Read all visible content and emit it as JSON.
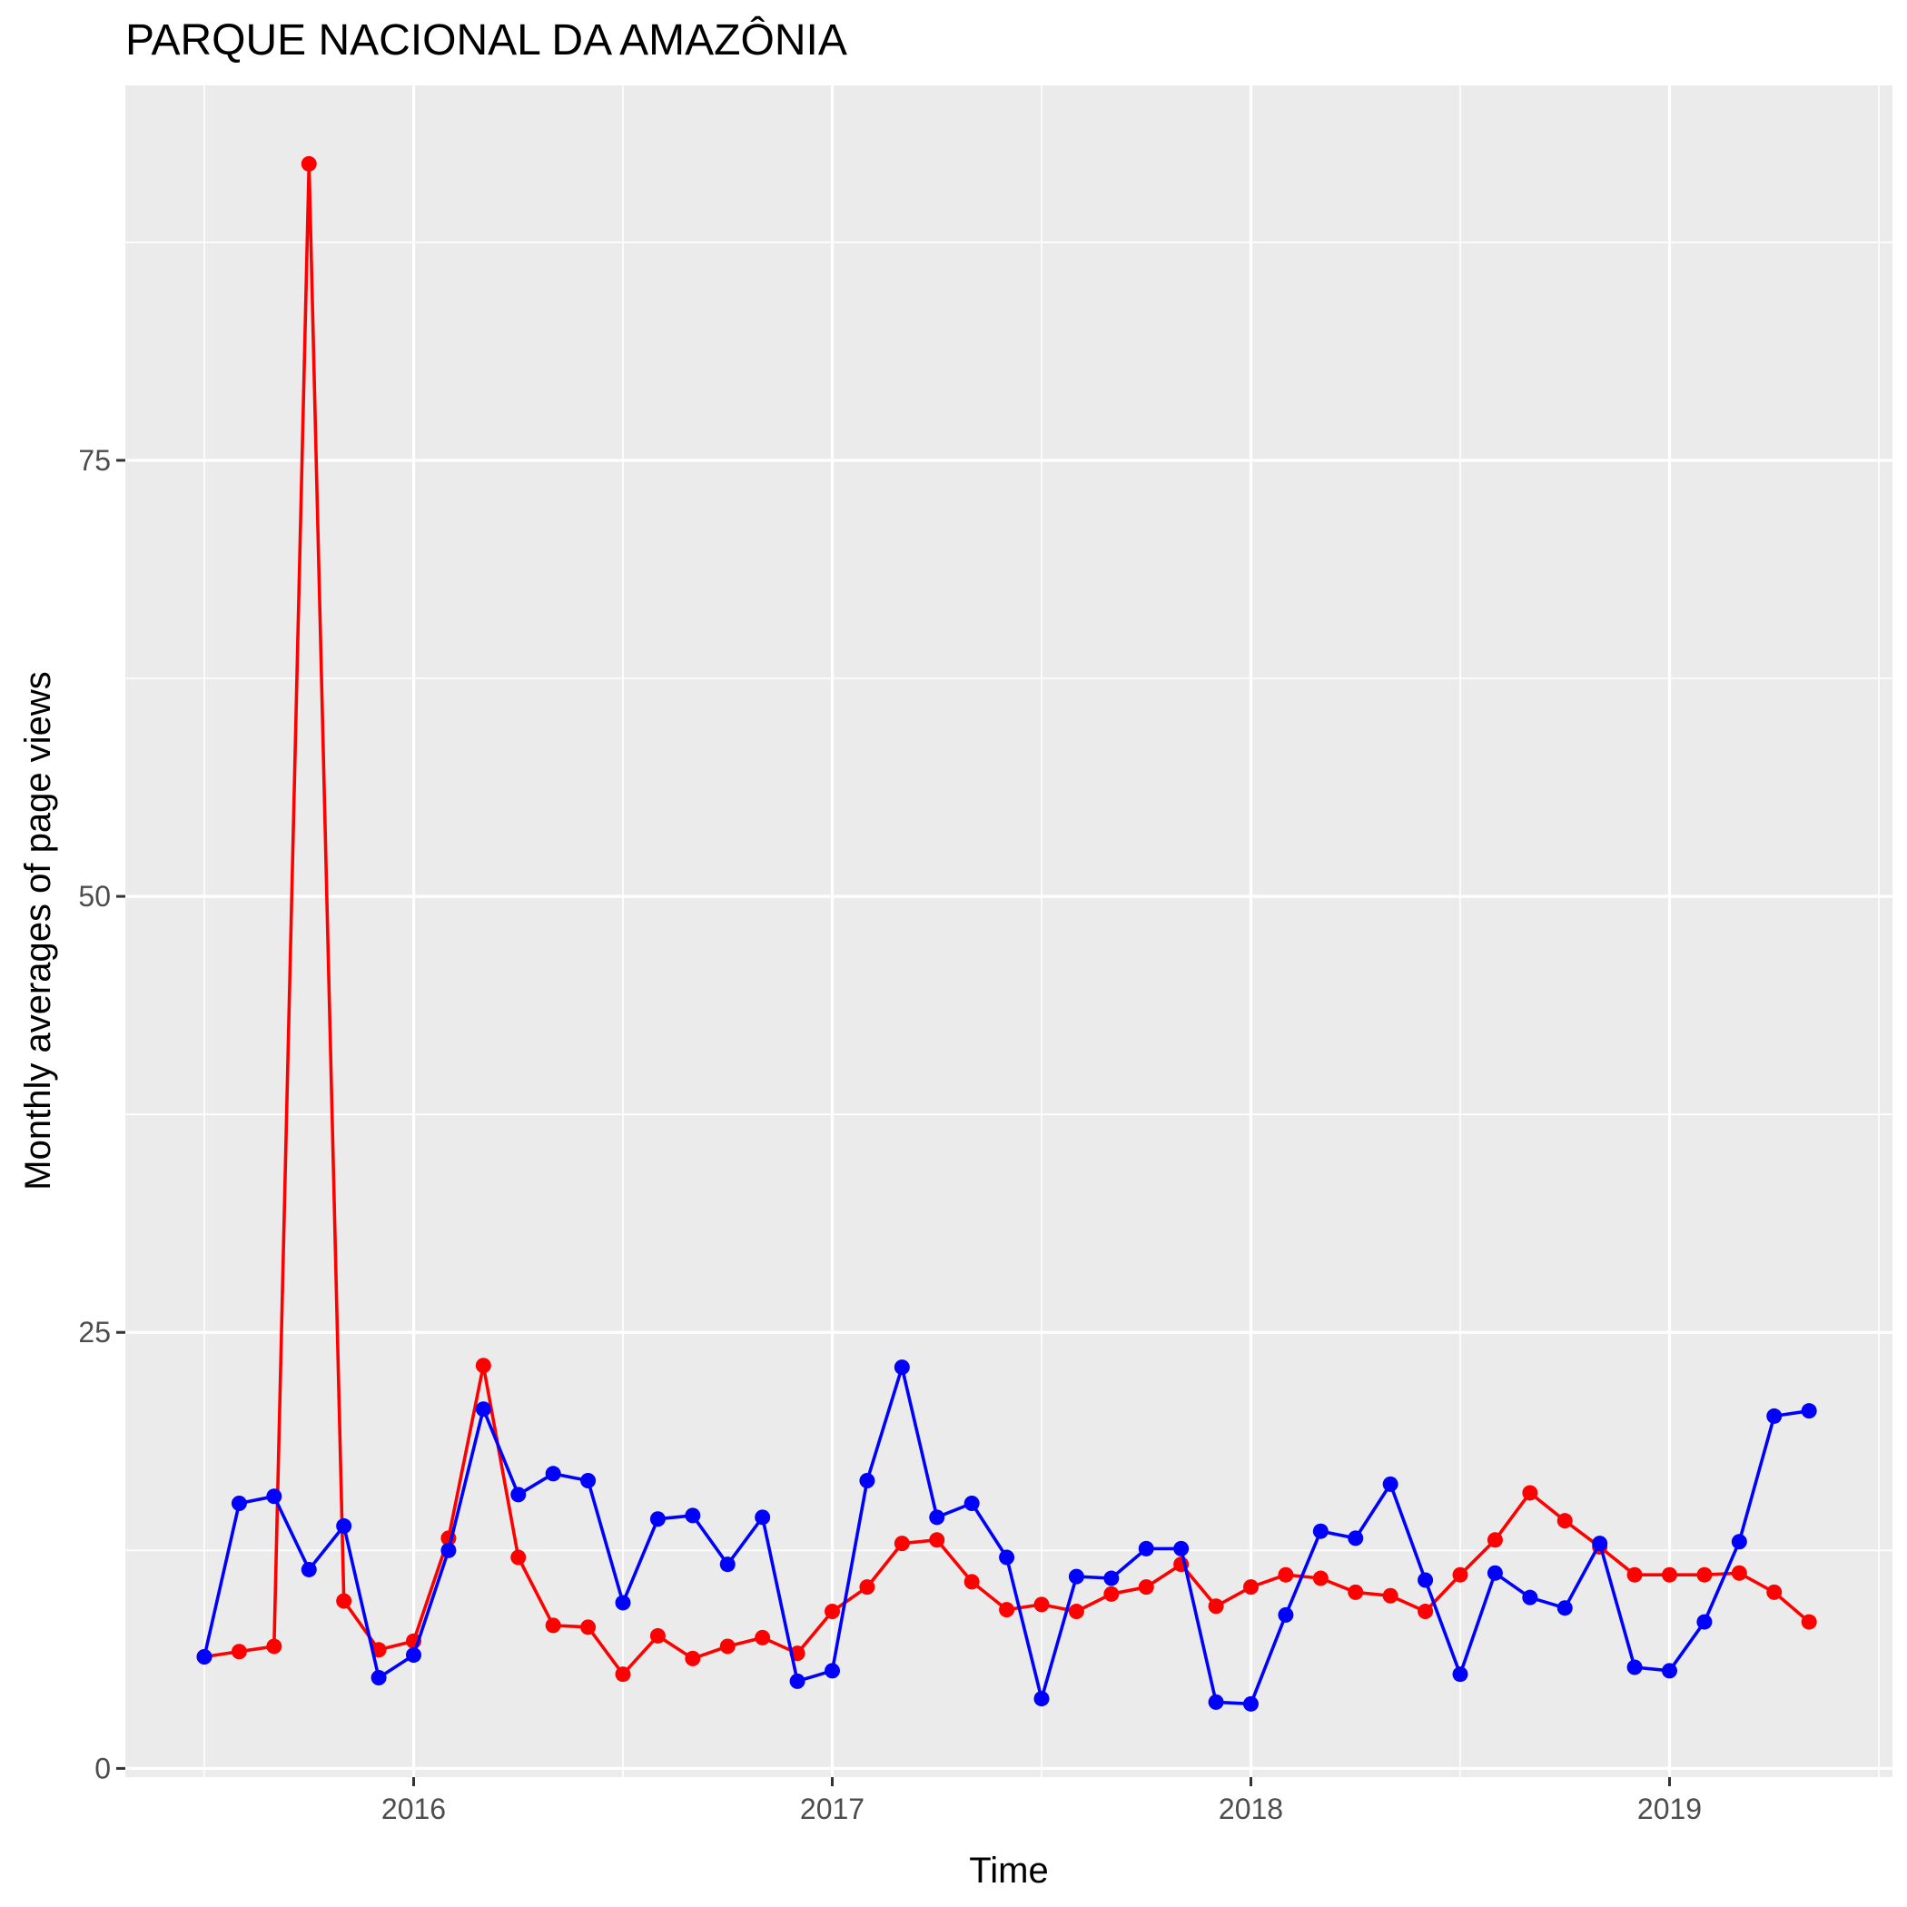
{
  "chart_data": {
    "type": "line",
    "title": "PARQUE NACIONAL DA AMAZÔNIA",
    "xlabel": "Time",
    "ylabel": "Monthly averages of page views",
    "x_start": "2015-07",
    "x_ticks": [
      "2016",
      "2017",
      "2018",
      "2019"
    ],
    "y_ticks": [
      "0",
      "25",
      "50",
      "75"
    ],
    "ylim": [
      -0.5,
      96.5
    ],
    "grid": true,
    "legend": "none",
    "x": [
      "2015-07",
      "2015-08",
      "2015-09",
      "2015-10",
      "2015-11",
      "2015-12",
      "2016-01",
      "2016-02",
      "2016-03",
      "2016-04",
      "2016-05",
      "2016-06",
      "2016-07",
      "2016-08",
      "2016-09",
      "2016-10",
      "2016-11",
      "2016-12",
      "2017-01",
      "2017-02",
      "2017-03",
      "2017-04",
      "2017-05",
      "2017-06",
      "2017-07",
      "2017-08",
      "2017-09",
      "2017-10",
      "2017-11",
      "2017-12",
      "2018-01",
      "2018-02",
      "2018-03",
      "2018-04",
      "2018-05",
      "2018-06",
      "2018-07",
      "2018-08",
      "2018-09",
      "2018-10",
      "2018-11",
      "2018-12",
      "2019-01",
      "2019-02",
      "2019-03",
      "2019-04",
      "2019-05"
    ],
    "series": [
      {
        "color": "#ff0000",
        "values": [
          6.4,
          6.7,
          7.0,
          92.0,
          9.6,
          6.8,
          7.3,
          13.2,
          23.1,
          12.1,
          8.2,
          8.1,
          5.4,
          7.6,
          6.3,
          7.0,
          7.5,
          6.6,
          9.0,
          10.4,
          12.9,
          13.1,
          10.7,
          9.1,
          9.4,
          9.0,
          10.0,
          10.4,
          11.7,
          9.3,
          10.4,
          11.1,
          10.9,
          10.1,
          9.9,
          9.0,
          11.1,
          13.1,
          15.8,
          14.2,
          12.7,
          11.1,
          11.1,
          11.1,
          11.2,
          10.1,
          8.4
        ]
      },
      {
        "color": "#0000ff",
        "values": [
          6.4,
          15.2,
          15.6,
          11.4,
          13.9,
          5.2,
          6.5,
          12.5,
          20.6,
          15.7,
          16.9,
          16.5,
          9.5,
          14.3,
          14.5,
          11.7,
          14.4,
          5.0,
          5.6,
          16.5,
          23.0,
          14.4,
          15.2,
          12.1,
          4.0,
          11.0,
          10.9,
          12.6,
          12.6,
          3.8,
          3.7,
          8.8,
          13.6,
          13.2,
          16.3,
          10.8,
          5.4,
          11.2,
          9.8,
          9.2,
          12.9,
          5.8,
          5.6,
          8.4,
          13.0,
          20.2,
          20.5
        ]
      }
    ]
  }
}
